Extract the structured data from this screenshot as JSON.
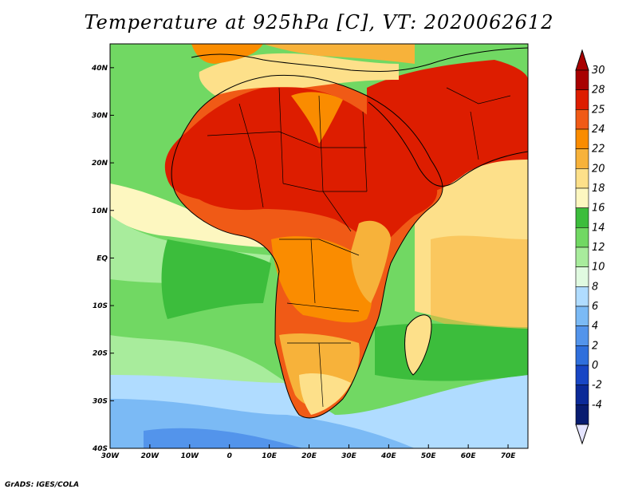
{
  "title": "Temperature at 925hPa [C], VT: 2020062612",
  "credit": "GrADS: IGES/COLA",
  "map": {
    "projection": "latlon",
    "lon_range": [
      -30,
      75
    ],
    "lat_range": [
      -40,
      45
    ],
    "x_ticks": [
      {
        "lon": -30,
        "label": "30W"
      },
      {
        "lon": -20,
        "label": "20W"
      },
      {
        "lon": -10,
        "label": "10W"
      },
      {
        "lon": 0,
        "label": "0"
      },
      {
        "lon": 10,
        "label": "10E"
      },
      {
        "lon": 20,
        "label": "20E"
      },
      {
        "lon": 30,
        "label": "30E"
      },
      {
        "lon": 40,
        "label": "40E"
      },
      {
        "lon": 50,
        "label": "50E"
      },
      {
        "lon": 60,
        "label": "60E"
      },
      {
        "lon": 70,
        "label": "70E"
      }
    ],
    "y_ticks": [
      {
        "lat": 40,
        "label": "40N"
      },
      {
        "lat": 30,
        "label": "30N"
      },
      {
        "lat": 20,
        "label": "20N"
      },
      {
        "lat": 10,
        "label": "10N"
      },
      {
        "lat": 0,
        "label": "EQ"
      },
      {
        "lat": -10,
        "label": "10S"
      },
      {
        "lat": -20,
        "label": "20S"
      },
      {
        "lat": -30,
        "label": "30S"
      },
      {
        "lat": -40,
        "label": "40S"
      }
    ]
  },
  "colorbar": {
    "levels": [
      {
        "label": "30",
        "color": "#a80000"
      },
      {
        "label": "28",
        "color": "#dd1d00"
      },
      {
        "label": "25",
        "color": "#f05a16"
      },
      {
        "label": "24",
        "color": "#fa8c00"
      },
      {
        "label": "22",
        "color": "#f7b23a"
      },
      {
        "label": "20",
        "color": "#fde08a"
      },
      {
        "label": "18",
        "color": "#fdf7c0"
      },
      {
        "label": "16",
        "color": "#3cbd3c"
      },
      {
        "label": "14",
        "color": "#71d863"
      },
      {
        "label": "12",
        "color": "#a8ec9c"
      },
      {
        "label": "10",
        "color": "#e0fae0"
      },
      {
        "label": "8",
        "color": "#b0dcff"
      },
      {
        "label": "6",
        "color": "#7bbaf5"
      },
      {
        "label": "4",
        "color": "#5394eb"
      },
      {
        "label": "2",
        "color": "#2f6fdc"
      },
      {
        "label": "0",
        "color": "#1846c4"
      },
      {
        "label": "-2",
        "color": "#0b2a98"
      },
      {
        "label": "-4",
        "color": "#081c70"
      }
    ],
    "below_color": "#e4e4ff"
  }
}
